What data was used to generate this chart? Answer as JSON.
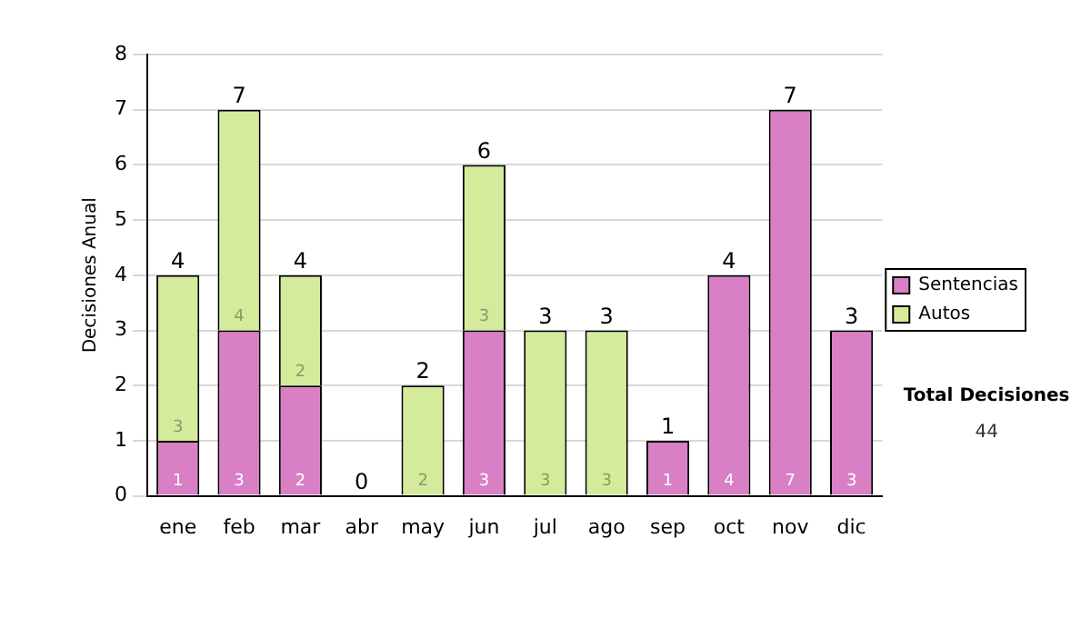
{
  "chart_data": {
    "type": "bar",
    "stacked": true,
    "ylabel": "Decisiones Anual",
    "categories": [
      "ene",
      "feb",
      "mar",
      "abr",
      "may",
      "jun",
      "jul",
      "ago",
      "sep",
      "oct",
      "nov",
      "dic"
    ],
    "series": [
      {
        "name": "Sentencias",
        "color": "#d97fc6",
        "values": [
          1,
          3,
          2,
          0,
          0,
          3,
          0,
          0,
          1,
          4,
          7,
          3
        ],
        "value_labels": [
          "1",
          "3",
          "2",
          null,
          null,
          "3",
          null,
          null,
          "1",
          "4",
          "7",
          "3"
        ]
      },
      {
        "name": "Autos",
        "color": "#d4eb9b",
        "values": [
          3,
          4,
          2,
          0,
          2,
          3,
          3,
          3,
          0,
          0,
          0,
          0
        ],
        "value_labels": [
          "3",
          "4",
          "2",
          null,
          "2",
          "3",
          "3",
          "3",
          null,
          null,
          null,
          null
        ]
      }
    ],
    "totals": [
      "4",
      "7",
      "4",
      "0",
      "2",
      "6",
      "3",
      "3",
      "1",
      "4",
      "7",
      "3"
    ],
    "ylim": [
      0,
      8
    ],
    "yticks": [
      0,
      1,
      2,
      3,
      4,
      5,
      6,
      7,
      8
    ],
    "grid": "y",
    "legend": "right",
    "annotations": [
      "Total Decisiones",
      "44"
    ]
  }
}
